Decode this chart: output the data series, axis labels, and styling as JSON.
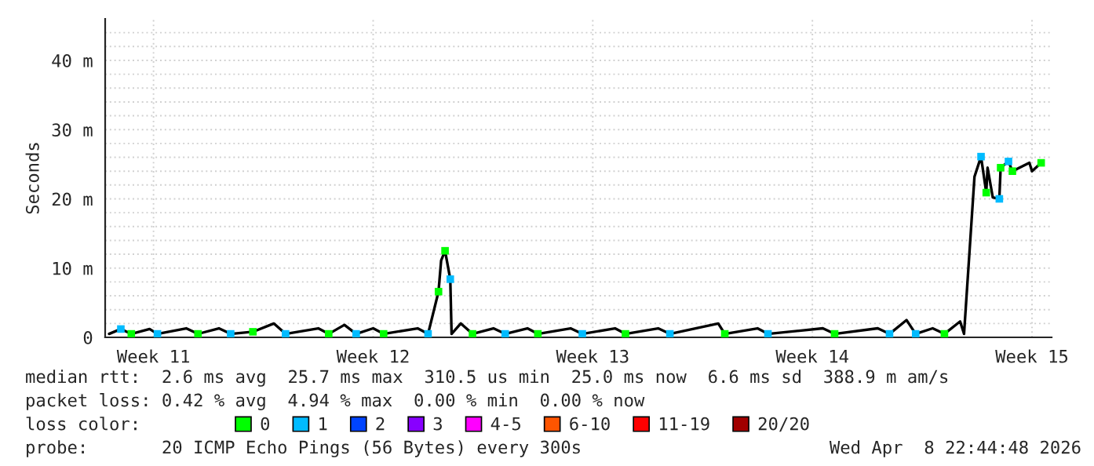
{
  "chart_data": {
    "type": "line",
    "ylabel": "Seconds",
    "xlim": [
      "2026-03-07T11:00",
      "2026-04-06T15:00"
    ],
    "ylim": [
      0,
      46
    ],
    "xticks": [
      {
        "value": "2026-03-09",
        "label": "Week 11"
      },
      {
        "value": "2026-03-16",
        "label": "Week 12"
      },
      {
        "value": "2026-03-23",
        "label": "Week 13"
      },
      {
        "value": "2026-03-30",
        "label": "Week 14"
      },
      {
        "value": "2026-04-06",
        "label": "Week 15"
      }
    ],
    "yticks": [
      0,
      {
        "value": 2,
        "label": null
      },
      {
        "value": 4,
        "label": null
      },
      {
        "value": 6,
        "label": null
      },
      {
        "value": 8,
        "label": null
      },
      {
        "value": 10,
        "label": "10 m"
      },
      {
        "value": 12,
        "label": null
      },
      {
        "value": 14,
        "label": null
      },
      {
        "value": 16,
        "label": null
      },
      {
        "value": 18,
        "label": null
      },
      {
        "value": 20,
        "label": "20 m"
      },
      {
        "value": 22,
        "label": null
      },
      {
        "value": 24,
        "label": null
      },
      {
        "value": 26,
        "label": null
      },
      {
        "value": 28,
        "label": null
      },
      {
        "value": 30,
        "label": "30 m"
      },
      {
        "value": 32,
        "label": null
      },
      {
        "value": 34,
        "label": null
      },
      {
        "value": 36,
        "label": null
      },
      {
        "value": 38,
        "label": null
      },
      {
        "value": 40,
        "label": "40 m"
      },
      {
        "value": 42,
        "label": null
      },
      {
        "value": 44,
        "label": null
      }
    ],
    "grid": true,
    "legend": "bottom",
    "legend_title": "loss color:",
    "series": [
      {
        "color": "#000000",
        "marker": "none",
        "x": [
          "2026-03-07T14:00",
          "2026-03-07T23:00",
          "2026-03-08T07:00",
          "2026-03-08T21:00",
          "2026-03-09T03:00",
          "2026-03-10T01:00",
          "2026-03-10T10:00",
          "2026-03-11T02:00",
          "2026-03-11T11:00",
          "2026-03-12T04:00",
          "2026-03-12T20:00",
          "2026-03-13T05:00",
          "2026-03-14T06:00",
          "2026-03-14T14:00",
          "2026-03-15T02:00",
          "2026-03-15T11:00",
          "2026-03-16T00:00",
          "2026-03-16T08:00",
          "2026-03-17T10:00",
          "2026-03-17T18:00",
          "2026-03-18T02:00",
          "2026-03-18T04:00",
          "2026-03-18T07:00",
          "2026-03-18T11:00",
          "2026-03-18T12:00",
          "2026-03-18T19:00",
          "2026-03-19T04:00",
          "2026-03-19T20:00",
          "2026-03-20T05:00",
          "2026-03-20T22:00",
          "2026-03-21T06:00",
          "2026-03-22T07:00",
          "2026-03-22T16:00",
          "2026-03-23T17:00",
          "2026-03-24T01:00",
          "2026-03-25T02:00",
          "2026-03-25T11:00",
          "2026-03-27T00:00",
          "2026-03-27T05:00",
          "2026-03-28T06:00",
          "2026-03-28T14:00",
          "2026-03-30T08:00",
          "2026-03-30T17:00",
          "2026-04-01T02:00",
          "2026-04-01T11:00",
          "2026-04-02T00:00",
          "2026-04-02T07:00",
          "2026-04-02T20:00",
          "2026-04-03T05:00",
          "2026-04-03T17:00",
          "2026-04-03T20:00",
          "2026-04-04T04:00",
          "2026-04-04T09:00",
          "2026-04-04T13:00",
          "2026-04-04T14:00",
          "2026-04-04T18:00",
          "2026-04-04T23:00",
          "2026-04-05T00:00",
          "2026-04-05T06:00",
          "2026-04-05T09:00",
          "2026-04-05T22:00",
          "2026-04-06T00:00",
          "2026-04-06T07:00"
        ],
        "values": [
          0.5,
          1.2,
          0.5,
          1.2,
          0.5,
          1.3,
          0.5,
          1.3,
          0.5,
          0.8,
          2.0,
          0.5,
          1.3,
          0.5,
          1.8,
          0.5,
          1.3,
          0.5,
          1.3,
          0.5,
          6.6,
          11.1,
          12.5,
          8.4,
          0.5,
          2.0,
          0.5,
          1.3,
          0.5,
          1.3,
          0.5,
          1.3,
          0.5,
          1.3,
          0.5,
          1.3,
          0.5,
          2.0,
          0.5,
          1.3,
          0.5,
          1.3,
          0.5,
          1.3,
          0.5,
          2.5,
          0.5,
          1.3,
          0.5,
          2.3,
          0.5,
          23.2,
          26.1,
          20.9,
          24.5,
          20.2,
          20.0,
          24.5,
          25.4,
          24.0,
          25.2,
          24.0,
          25.2
        ]
      },
      {
        "type": "scatter",
        "name": "0",
        "color": "#00ff00",
        "x": [
          "2026-03-08T07:00",
          "2026-03-10T10:00",
          "2026-03-12T04:00",
          "2026-03-14T14:00",
          "2026-03-16T08:00",
          "2026-03-18T02:00",
          "2026-03-18T07:00",
          "2026-03-19T04:00",
          "2026-03-21T06:00",
          "2026-03-24T01:00",
          "2026-03-27T05:00",
          "2026-03-30T17:00",
          "2026-04-03T05:00",
          "2026-04-04T13:00",
          "2026-04-05T00:00",
          "2026-04-05T09:00",
          "2026-04-06T07:00"
        ],
        "values": [
          0.5,
          0.5,
          0.8,
          0.5,
          0.5,
          6.6,
          12.5,
          0.5,
          0.5,
          0.5,
          0.5,
          0.5,
          0.5,
          20.9,
          24.5,
          24.0,
          25.2
        ]
      },
      {
        "type": "scatter",
        "name": "1",
        "color": "#00bbff",
        "x": [
          "2026-03-07T23:00",
          "2026-03-09T03:00",
          "2026-03-11T11:00",
          "2026-03-13T05:00",
          "2026-03-15T11:00",
          "2026-03-17T18:00",
          "2026-03-18T11:00",
          "2026-03-20T05:00",
          "2026-03-22T16:00",
          "2026-03-25T11:00",
          "2026-03-28T14:00",
          "2026-04-01T11:00",
          "2026-04-02T07:00",
          "2026-04-04T09:00",
          "2026-04-04T23:00",
          "2026-04-05T06:00"
        ],
        "values": [
          1.2,
          0.5,
          0.5,
          0.5,
          0.5,
          0.5,
          8.4,
          0.5,
          0.5,
          0.5,
          0.5,
          0.5,
          0.5,
          26.1,
          20.0,
          25.4
        ]
      },
      {
        "type": "scatter",
        "name": "2",
        "color": "#0044ff"
      },
      {
        "type": "scatter",
        "name": "3",
        "color": "#8800ff"
      },
      {
        "type": "scatter",
        "name": "4-5",
        "color": "#ff00ff"
      },
      {
        "type": "scatter",
        "name": "6-10",
        "color": "#ff5500"
      },
      {
        "type": "scatter",
        "name": "11-19",
        "color": "#ff0000"
      },
      {
        "type": "scatter",
        "name": "20/20",
        "color": "#a10000"
      }
    ],
    "marker": "square",
    "annotations": [
      "median rtt:  2.6 ms avg  25.7 ms max  310.5 us min  25.0 ms now  6.6 ms sd  388.9 m am/s",
      "packet loss: 0.42 % avg  4.94 % max  0.00 % min  0.00 % now",
      "probe:       20 ICMP Echo Pings (56 Bytes) every 300s",
      "Wed Apr  8 22:44:48 2026"
    ]
  }
}
